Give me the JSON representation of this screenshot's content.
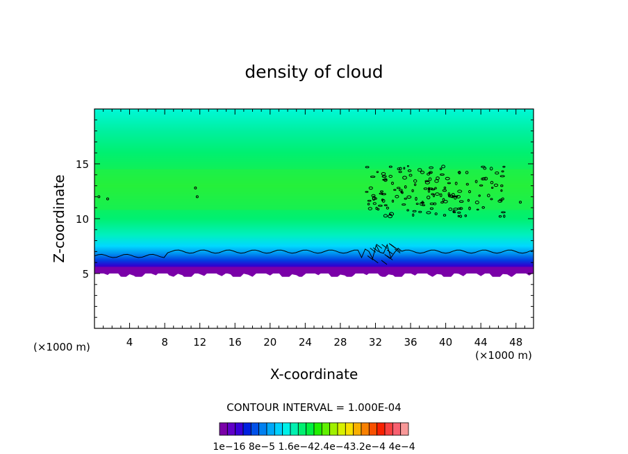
{
  "chart_data": {
    "type": "heatmap",
    "title": "density of cloud",
    "xlabel": "X-coordinate",
    "ylabel": "Z-coordinate",
    "x_unit_left": "(×1000 m)",
    "x_unit_right": "(×1000 m)",
    "xlim": [
      0,
      50
    ],
    "ylim": [
      0,
      20
    ],
    "x_ticks": [
      4,
      8,
      12,
      16,
      20,
      24,
      28,
      32,
      36,
      40,
      44,
      48
    ],
    "y_ticks": [
      5,
      10,
      15
    ],
    "contour_interval_label": "CONTOUR INTERVAL = 1.000E-04",
    "colorbar_labels": [
      "1e-16",
      "8e-5",
      "1.6e-4",
      "2.4e-4",
      "3.2e-4",
      "4e-4"
    ],
    "colorbar_label_text": "1e−16  8e−5  1.6e−42.4e−43.2e−4  4e−4",
    "colorbar_colors": [
      "#7a00a8",
      "#6000c8",
      "#3a00d8",
      "#0020e0",
      "#0050e8",
      "#0080f0",
      "#00a8f8",
      "#00d0ff",
      "#00f0e8",
      "#00f0b0",
      "#00f070",
      "#00f040",
      "#20f000",
      "#60f000",
      "#a0f000",
      "#d8f000",
      "#f8e000",
      "#f8b000",
      "#f88000",
      "#f85000",
      "#f82000",
      "#f84040",
      "#f86070",
      "#f89898"
    ],
    "description_profile": [
      {
        "z": 20.0,
        "color": "#00f8d8"
      },
      {
        "z": 18.0,
        "color": "#00f0a0"
      },
      {
        "z": 16.0,
        "color": "#00f070"
      },
      {
        "z": 13.0,
        "color": "#20f040"
      },
      {
        "z": 10.0,
        "color": "#00f070"
      },
      {
        "z": 8.5,
        "color": "#00f0c0"
      },
      {
        "z": 7.5,
        "color": "#00d8ff"
      },
      {
        "z": 6.8,
        "color": "#0090f0"
      },
      {
        "z": 6.2,
        "color": "#0040e0"
      },
      {
        "z": 5.7,
        "color": "#3000d0"
      },
      {
        "z": 5.3,
        "color": "#7a00a8"
      }
    ],
    "cloud_base_z": 5.0,
    "contour_line_z": 7.0
  }
}
